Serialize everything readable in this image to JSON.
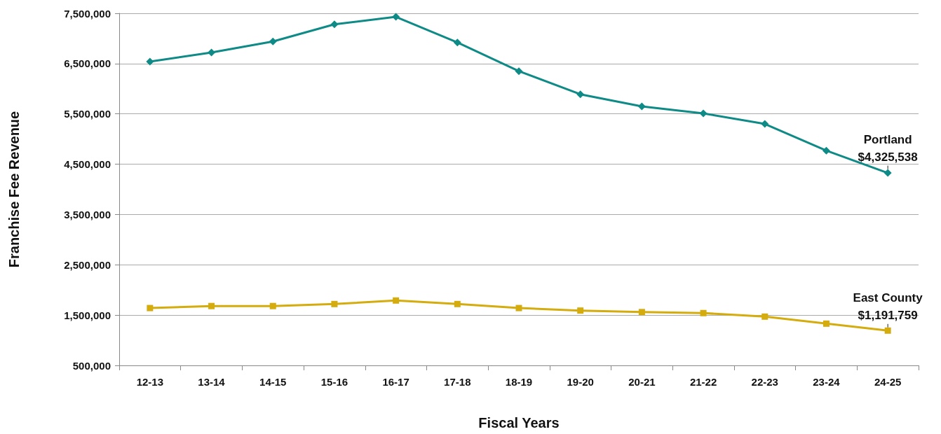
{
  "chart_data": {
    "type": "line",
    "xlabel": "Fiscal Years",
    "ylabel": "Franchise Fee Revenue",
    "categories": [
      "12-13",
      "13-14",
      "14-15",
      "15-16",
      "16-17",
      "17-18",
      "18-19",
      "19-20",
      "20-21",
      "21-22",
      "22-23",
      "23-24",
      "24-25"
    ],
    "series": [
      {
        "name": "Portland",
        "color": "#0e8a87",
        "marker": "diamond",
        "values": [
          6540000,
          6720000,
          6940000,
          7280000,
          7430000,
          6920000,
          6350000,
          5890000,
          5650000,
          5510000,
          5300000,
          4770000,
          4325538
        ]
      },
      {
        "name": "East County",
        "color": "#d4ac0d",
        "marker": "square",
        "values": [
          1640000,
          1680000,
          1680000,
          1720000,
          1790000,
          1720000,
          1640000,
          1590000,
          1560000,
          1540000,
          1470000,
          1330000,
          1191759
        ]
      }
    ],
    "annotations": [
      {
        "text": "$4,325,538",
        "x": "24-25",
        "y": 4325538
      },
      {
        "text": "$1,191,759",
        "x": "24-25",
        "y": 1191759
      }
    ],
    "ylim": [
      500000,
      7500000
    ],
    "yticks": [
      {
        "value": 500000,
        "label": "500,000"
      },
      {
        "value": 1500000,
        "label": "1,500,000"
      },
      {
        "value": 2500000,
        "label": "2,500,000"
      },
      {
        "value": 3500000,
        "label": "3,500,000"
      },
      {
        "value": 4500000,
        "label": "4,500,000"
      },
      {
        "value": 5500000,
        "label": "5,500,000"
      },
      {
        "value": 6500000,
        "label": "6,500,000"
      },
      {
        "value": 7500000,
        "label": "7,500,000"
      }
    ],
    "grid": "y",
    "legend": false,
    "line_style": "solid"
  }
}
